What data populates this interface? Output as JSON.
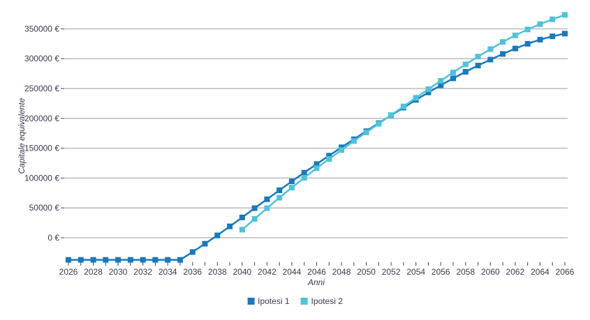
{
  "chart_data": {
    "type": "line",
    "title": "",
    "xlabel": "Anni",
    "ylabel": "Capitale equivalente",
    "grid": "horizontal",
    "legend_position": "bottom-center",
    "xlim": [
      2025.7,
      2066.3
    ],
    "ylim": [
      -41000,
      388000
    ],
    "x_tick_labels": [
      "2026",
      "2028",
      "2030",
      "2032",
      "2034",
      "2036",
      "2038",
      "2040",
      "2042",
      "2044",
      "2046",
      "2048",
      "2050",
      "2052",
      "2054",
      "2056",
      "2058",
      "2060",
      "2062",
      "2064",
      "2066"
    ],
    "x_minor_ticks_every_year": true,
    "y_tick_values": [
      0,
      50000,
      100000,
      150000,
      200000,
      250000,
      300000,
      350000
    ],
    "y_tick_labels": [
      "0 €",
      "50000 €",
      "100000 €",
      "150000 €",
      "200000 €",
      "250000 €",
      "300000 €",
      "350000 €"
    ],
    "series": [
      {
        "name": "Ipotesi 1",
        "color": "#1879BD",
        "marker": "square",
        "x": [
          2026,
          2027,
          2028,
          2029,
          2030,
          2031,
          2032,
          2033,
          2034,
          2035,
          2036,
          2037,
          2038,
          2039,
          2040,
          2041,
          2042,
          2043,
          2044,
          2045,
          2046,
          2047,
          2048,
          2049,
          2050,
          2051,
          2052,
          2053,
          2054,
          2055,
          2056,
          2057,
          2058,
          2059,
          2060,
          2061,
          2062,
          2063,
          2064,
          2065,
          2066
        ],
        "values": [
          -37000,
          -37000,
          -37000,
          -37000,
          -37000,
          -37000,
          -37000,
          -37000,
          -37000,
          -37000,
          -24000,
          -10000,
          4000,
          19000,
          34000,
          49500,
          64500,
          79500,
          94500,
          109000,
          123500,
          137500,
          151500,
          165000,
          178500,
          192000,
          205000,
          218000,
          231000,
          243500,
          255500,
          267000,
          278000,
          288500,
          298500,
          308000,
          317000,
          325000,
          332000,
          337500,
          342000
        ]
      },
      {
        "name": "Ipotesi 2",
        "color": "#4CC4DB",
        "marker": "square",
        "x": [
          2040,
          2041,
          2042,
          2043,
          2044,
          2045,
          2046,
          2047,
          2048,
          2049,
          2050,
          2051,
          2052,
          2053,
          2054,
          2055,
          2056,
          2057,
          2058,
          2059,
          2060,
          2061,
          2062,
          2063,
          2064,
          2065,
          2066
        ],
        "values": [
          13500,
          31500,
          49500,
          67000,
          84000,
          100500,
          116500,
          132000,
          147000,
          162000,
          176500,
          191000,
          205500,
          220000,
          234500,
          249000,
          263000,
          277000,
          290500,
          303500,
          316000,
          328000,
          339000,
          349000,
          358000,
          366000,
          373500
        ]
      }
    ],
    "styles": {
      "background": "#FFFFFF",
      "gridline_color": "#BBBBBB",
      "tick_color": "#404040",
      "text_color": "#3A3A4D"
    }
  }
}
